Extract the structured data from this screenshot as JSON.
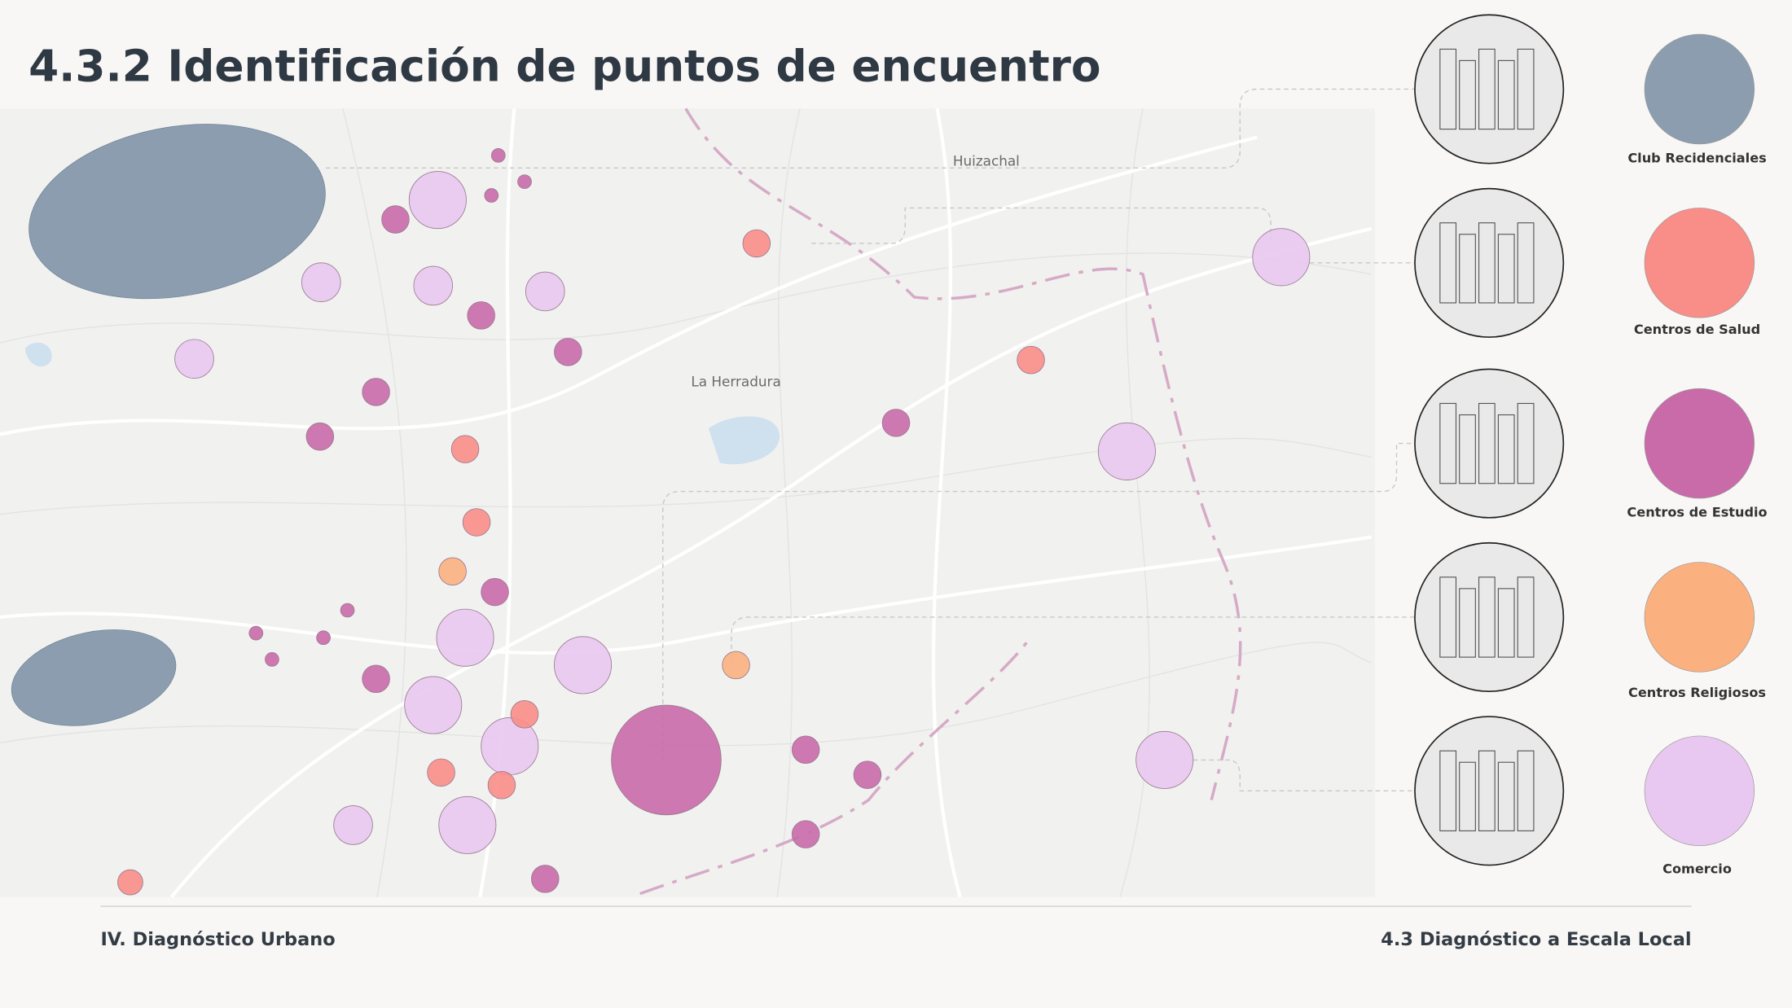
{
  "header": {
    "title": "4.3.2 Identificación de puntos de encuentro"
  },
  "map": {
    "labels": [
      "Huizachal",
      "La Herradura"
    ]
  },
  "legend": [
    {
      "label": "Club Recidenciales",
      "color": "#8b9daf"
    },
    {
      "label": "Centros de Salud",
      "color": "#f98d87"
    },
    {
      "label": "Centros de Estudio",
      "color": "#c96aa9"
    },
    {
      "label": "Centros Religiosos",
      "color": "#fbb07f"
    },
    {
      "label": "Comercio",
      "color": "#e8c8f0"
    }
  ],
  "footer": {
    "left": "IV. Diagnóstico Urbano",
    "right": "4.3 Diagnóstico a Escala Local"
  }
}
